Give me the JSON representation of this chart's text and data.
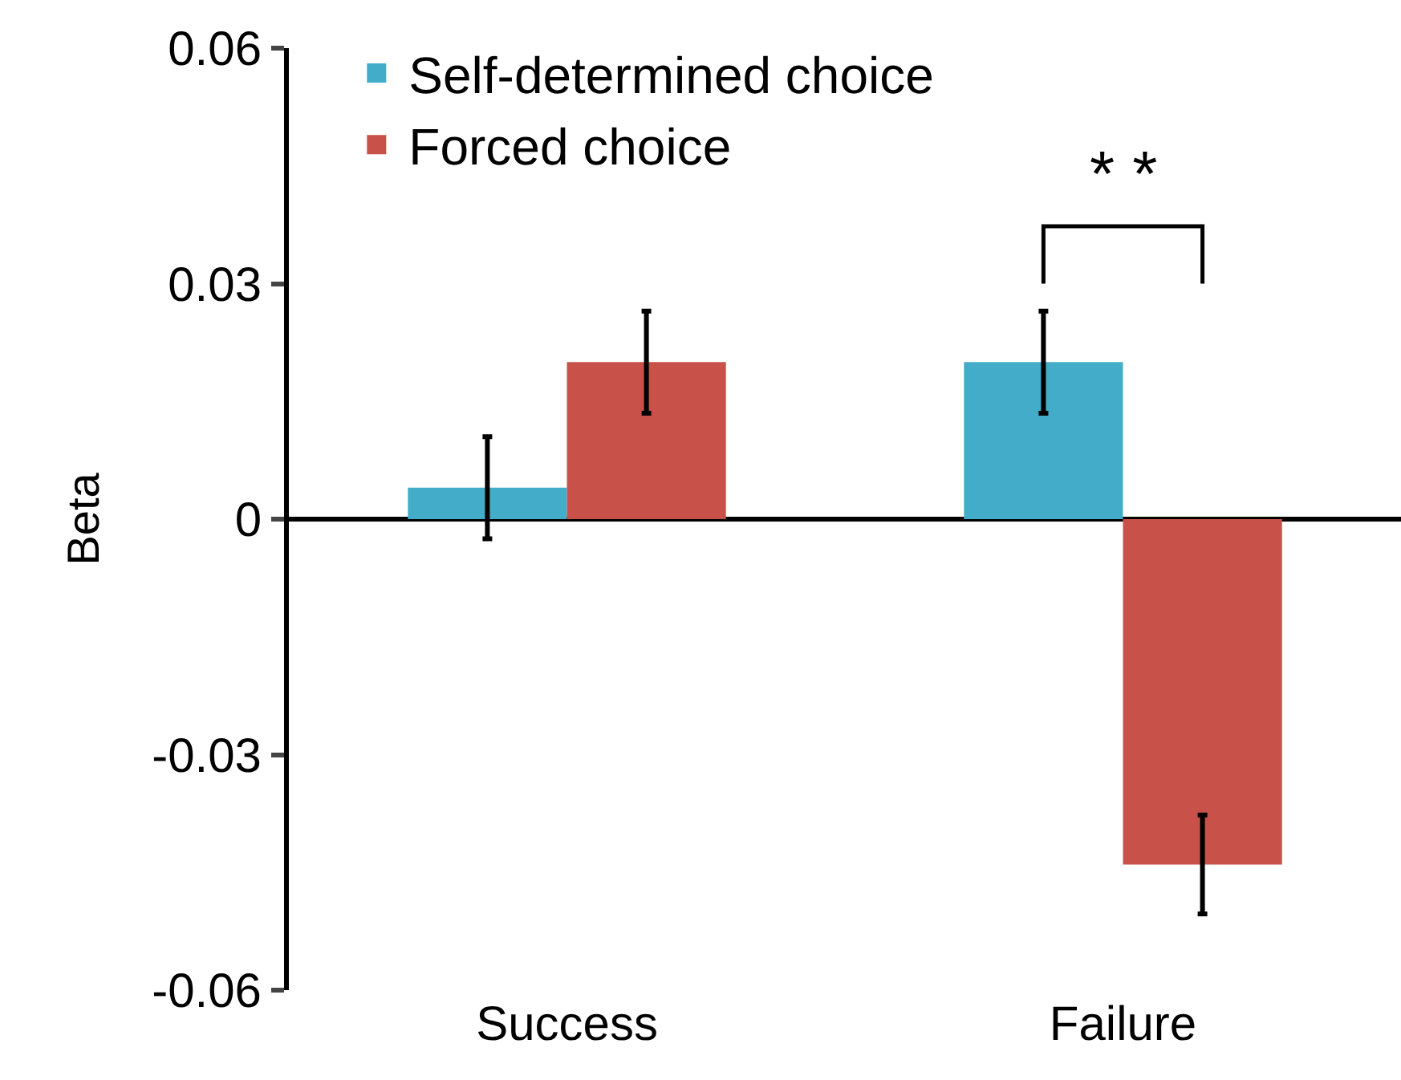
{
  "chart_data": {
    "type": "bar",
    "ylabel": "Beta",
    "categories": [
      "Success",
      "Failure"
    ],
    "series": [
      {
        "name": "Self-determined choice",
        "color": "#43adc9",
        "values": [
          0.004,
          0.02
        ],
        "errors": [
          0.0065,
          0.0065
        ]
      },
      {
        "name": "Forced choice",
        "color": "#c8524a",
        "values": [
          0.02,
          -0.044
        ],
        "errors": [
          0.0065,
          0.0063
        ]
      }
    ],
    "ylim": [
      -0.06,
      0.06
    ],
    "yticks": [
      -0.06,
      -0.03,
      0,
      0.03,
      0.06
    ],
    "legend": "top left",
    "annotations": [
      "* *"
    ]
  }
}
